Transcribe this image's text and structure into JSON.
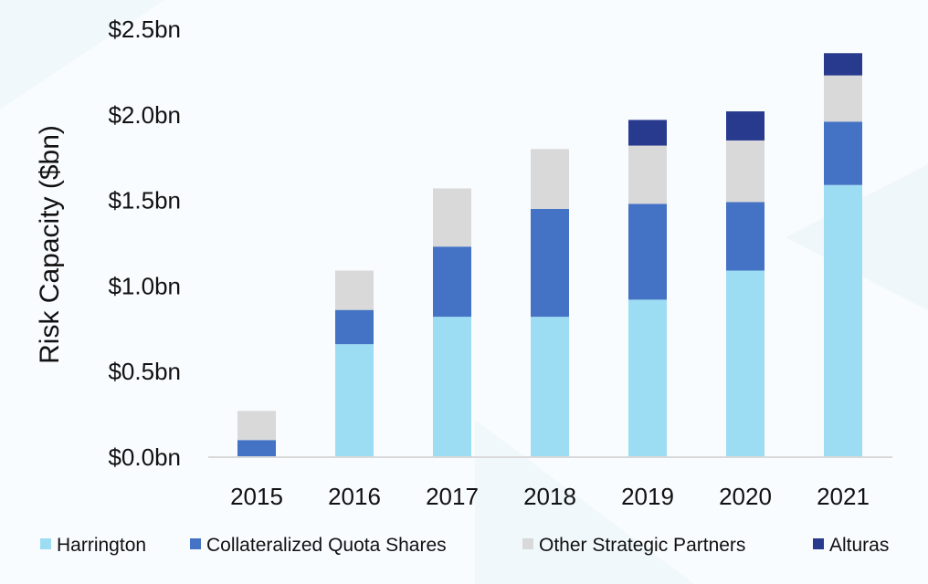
{
  "chart_data": {
    "type": "bar",
    "stacked": true,
    "ylabel": "Risk Capacity ($bn)",
    "ylim": [
      0,
      2.5
    ],
    "yticks": [
      "$0.0bn",
      "$0.5bn",
      "$1.0bn",
      "$1.5bn",
      "$2.0bn",
      "$2.5bn"
    ],
    "grid": false,
    "legend_position": "bottom",
    "categories": [
      "2015",
      "2016",
      "2017",
      "2018",
      "2019",
      "2020",
      "2021"
    ],
    "series": [
      {
        "name": "Harrington",
        "color": "#9dddf3",
        "values": [
          0,
          0.66,
          0.82,
          0.82,
          0.92,
          1.09,
          1.59
        ]
      },
      {
        "name": "Collateralized Quota Shares",
        "color": "#4472c4",
        "values": [
          0.1,
          0.2,
          0.41,
          0.63,
          0.56,
          0.4,
          0.37
        ]
      },
      {
        "name": "Other Strategic Partners",
        "color": "#d9d9d9",
        "values": [
          0.17,
          0.23,
          0.34,
          0.35,
          0.34,
          0.36,
          0.27
        ]
      },
      {
        "name": "Alturas",
        "color": "#283a8e",
        "values": [
          0,
          0,
          0,
          0,
          0.15,
          0.17,
          0.13
        ]
      }
    ]
  }
}
